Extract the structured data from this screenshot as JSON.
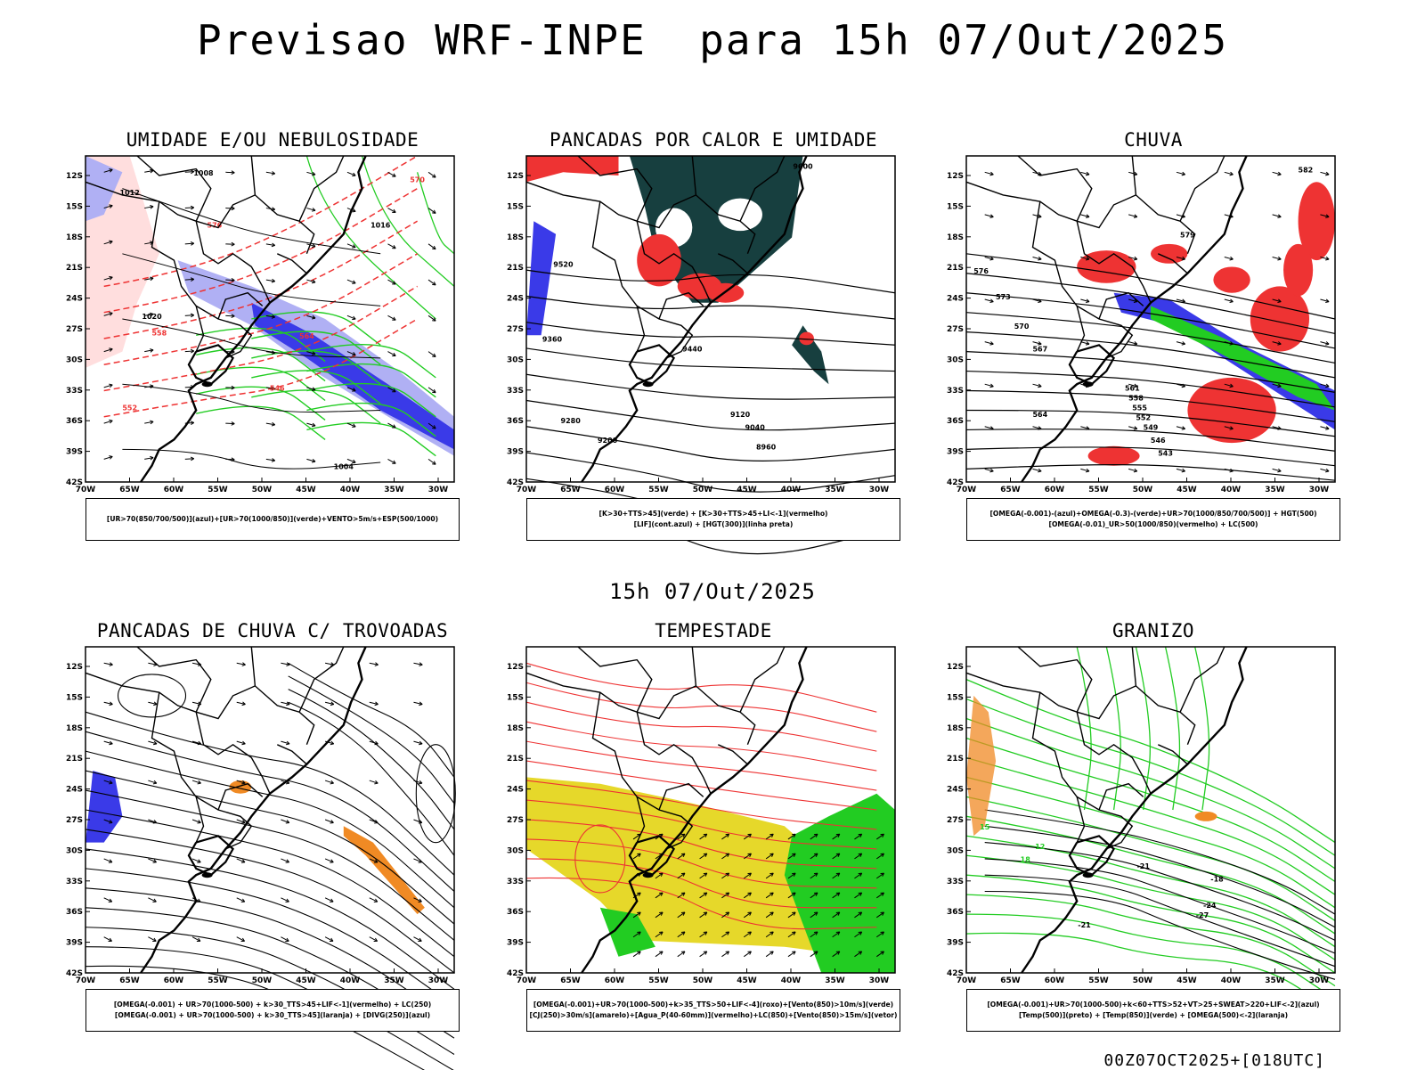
{
  "title": "Previsao WRF-INPE  para 15h 07/Out/2025",
  "mid_title": "15h 07/Out/2025",
  "footer": "00Z07OCT2025+[018UTC]",
  "axes": {
    "lat_labels": [
      "12S",
      "15S",
      "18S",
      "21S",
      "24S",
      "27S",
      "30S",
      "33S",
      "36S",
      "39S",
      "42S"
    ],
    "lon_labels": [
      "70W",
      "65W",
      "60W",
      "55W",
      "50W",
      "45W",
      "40W",
      "35W",
      "30W"
    ]
  },
  "colors": {
    "humid_blue": "#b0b0f4",
    "deep_blue": "#3a3ae8",
    "green": "#22cc22",
    "red": "#ee3333",
    "dark_teal": "#173f3f",
    "orange": "#f08a24",
    "yellow": "#e6d82a"
  },
  "panels": [
    {
      "title": "UMIDADE E/OU NEBULOSIDADE",
      "legend": [
        "[UR>70(850/700/500)](azul)+[UR>70(1000/850)](verde)+VENTO>5m/s+ESP(500/1000)"
      ],
      "contour_labels": [
        {
          "text": "1008",
          "color": "#000"
        },
        {
          "text": "1012",
          "color": "#000"
        },
        {
          "text": "1016",
          "color": "#000"
        },
        {
          "text": "1020",
          "color": "#000"
        },
        {
          "text": "1004",
          "color": "#000"
        },
        {
          "text": "576",
          "color": "#ee3333"
        },
        {
          "text": "570",
          "color": "#ee3333"
        },
        {
          "text": "564",
          "color": "#ee3333"
        },
        {
          "text": "558",
          "color": "#ee3333"
        },
        {
          "text": "552",
          "color": "#ee3333"
        },
        {
          "text": "546",
          "color": "#ee3333"
        }
      ]
    },
    {
      "title": "PANCADAS POR CALOR E UMIDADE",
      "legend": [
        "[K>30+TTS>45](verde) + [K>30+TTS>45+LI<-1](vermelho)",
        "[LIF](cont.azul) + [HGT(300)](linha preta)"
      ],
      "contour_labels": [
        {
          "text": "9600",
          "color": "#000"
        },
        {
          "text": "9520",
          "color": "#000"
        },
        {
          "text": "9440",
          "color": "#000"
        },
        {
          "text": "9360",
          "color": "#000"
        },
        {
          "text": "9280",
          "color": "#000"
        },
        {
          "text": "9200",
          "color": "#000"
        },
        {
          "text": "9120",
          "color": "#000"
        },
        {
          "text": "9040",
          "color": "#000"
        },
        {
          "text": "8960",
          "color": "#000"
        }
      ]
    },
    {
      "title": "CHUVA",
      "legend": [
        "[OMEGA(-0.001)-(azul)+OMEGA(-0.3)-(verde)+UR>70(1000/850/700/500)] + HGT(500)",
        "[OMEGA(-0.01)_UR>50(1000/850)(vermelho) + LC(500)"
      ],
      "contour_labels": [
        {
          "text": "582",
          "color": "#000"
        },
        {
          "text": "579",
          "color": "#000"
        },
        {
          "text": "576",
          "color": "#000"
        },
        {
          "text": "573",
          "color": "#000"
        },
        {
          "text": "570",
          "color": "#000"
        },
        {
          "text": "567",
          "color": "#000"
        },
        {
          "text": "564",
          "color": "#000"
        },
        {
          "text": "561",
          "color": "#000"
        },
        {
          "text": "558",
          "color": "#000"
        },
        {
          "text": "555",
          "color": "#000"
        },
        {
          "text": "552",
          "color": "#000"
        },
        {
          "text": "549",
          "color": "#000"
        },
        {
          "text": "546",
          "color": "#000"
        },
        {
          "text": "543",
          "color": "#000"
        }
      ]
    },
    {
      "title": "PANCADAS DE CHUVA C/ TROVOADAS",
      "legend": [
        "[OMEGA(-0.001) + UR>70(1000-500) + k>30_TTS>45+LIF<-1](vermelho) + LC(250)",
        "[OMEGA(-0.001) + UR>70(1000-500) + k>30_TTS>45](laranja) + [DIVG(250)](azul)"
      ],
      "contour_labels": []
    },
    {
      "title": "TEMPESTADE",
      "legend": [
        "[OMEGA(-0.001)+UR>70(1000-500)+k>35_TTS>50+LIF<-4](roxo)+[Vento(850)>10m/s](verde)",
        "[CJ(250)>30m/s](amarelo)+[Agua_P(40-60mm)](vermelho)+LC(850)+[Vento(850)>15m/s](vetor)"
      ],
      "contour_labels": []
    },
    {
      "title": "GRANIZO",
      "legend": [
        "[OMEGA(-0.001)+UR>70(1000-500)+k<60+TTS>52+VT>25+SWEAT>220+LIF<-2](azul)",
        "[Temp(500)](preto) + [Temp(850)](verde) + [OMEGA(500)<-2](laranja)"
      ],
      "contour_labels": [
        {
          "text": "-21",
          "color": "#000"
        },
        {
          "text": "-24",
          "color": "#000"
        },
        {
          "text": "-27",
          "color": "#000"
        },
        {
          "text": "-18",
          "color": "#000"
        },
        {
          "text": "-21",
          "color": "#000"
        },
        {
          "text": "15",
          "color": "#22cc22"
        },
        {
          "text": "12",
          "color": "#22cc22"
        },
        {
          "text": "18",
          "color": "#22cc22"
        }
      ]
    }
  ]
}
